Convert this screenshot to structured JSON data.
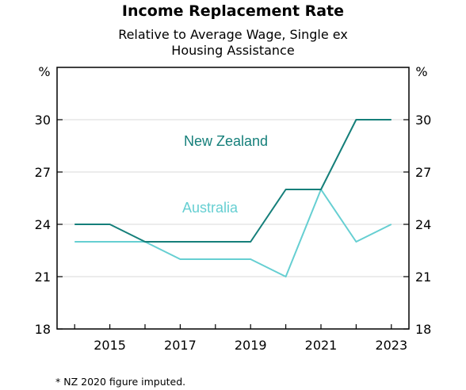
{
  "chart_data": {
    "type": "line",
    "title": "Income Replacement Rate",
    "subtitle_lines": [
      "Relative to Average Wage, Single ex",
      "Housing Assistance"
    ],
    "unit_left": "%",
    "unit_right": "%",
    "ylim": [
      18,
      33
    ],
    "yticks": [
      18,
      21,
      24,
      27,
      30
    ],
    "xlim": [
      2013.5,
      2023.5
    ],
    "xticks": [
      2015,
      2017,
      2019,
      2021,
      2023
    ],
    "grid": "horizontal",
    "series": [
      {
        "name": "New Zealand",
        "color": "#157f7a",
        "x": [
          2014,
          2015,
          2016,
          2017,
          2018,
          2019,
          2020,
          2021,
          2022,
          2023
        ],
        "y": [
          24,
          24,
          23,
          23,
          23,
          23,
          26,
          26,
          30,
          30
        ]
      },
      {
        "name": "Australia",
        "color": "#66cfd2",
        "x": [
          2014,
          2015,
          2016,
          2017,
          2018,
          2019,
          2020,
          2021,
          2022,
          2023
        ],
        "y": [
          23,
          23,
          23,
          22,
          22,
          22,
          21,
          26,
          23,
          24
        ]
      }
    ],
    "footnote": "* NZ 2020 figure imputed."
  }
}
